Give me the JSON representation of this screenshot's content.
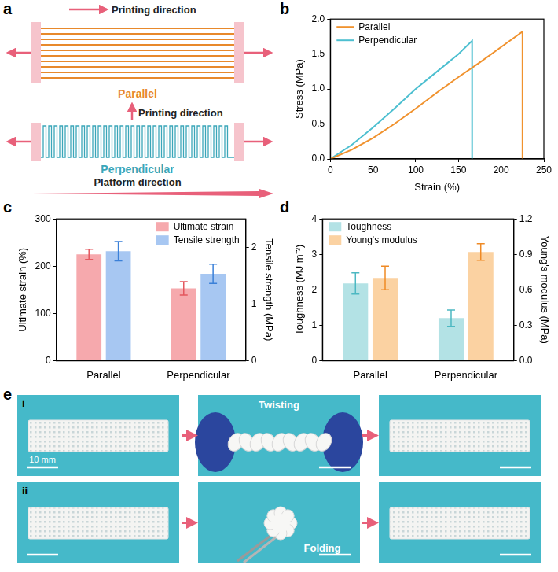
{
  "panel_labels": [
    "a",
    "b",
    "c",
    "d",
    "e"
  ],
  "schematic": {
    "parallel": {
      "label": "Parallel",
      "direction_label": "Printing direction"
    },
    "perpendicular": {
      "label": "Perpendicular",
      "direction_label": "Printing direction"
    },
    "platform_label": "Platform direction"
  },
  "chart_data": [
    {
      "type": "line",
      "x_label": "Strain (%)",
      "y_label": "Stress (MPa)",
      "xlim": [
        0,
        250
      ],
      "xticks": [
        0,
        50,
        100,
        150,
        200,
        250
      ],
      "ylim": [
        0,
        2
      ],
      "yticks": [
        {
          "value": 0,
          "label": "0.0"
        },
        0.5,
        {
          "value": 1,
          "label": "1.0"
        },
        1.5,
        {
          "value": 2,
          "label": "2.0"
        }
      ],
      "grid": false,
      "legend": "top-left",
      "series": [
        {
          "name": "Parallel",
          "color": "#f0922e",
          "x": [
            0,
            25,
            50,
            75,
            100,
            125,
            150,
            175,
            200,
            225,
            225
          ],
          "values": [
            0,
            0.13,
            0.3,
            0.5,
            0.72,
            0.95,
            1.17,
            1.38,
            1.6,
            1.82,
            0
          ]
        },
        {
          "name": "Perpendicular",
          "color": "#4dbfd0",
          "x": [
            0,
            25,
            50,
            75,
            100,
            125,
            150,
            166,
            166
          ],
          "values": [
            0,
            0.2,
            0.45,
            0.72,
            1.0,
            1.25,
            1.5,
            1.69,
            0
          ]
        }
      ]
    },
    {
      "type": "bar",
      "categories": [
        "Parallel",
        "Perpendicular"
      ],
      "y_label": "Ultimate strain (%)",
      "y2_label": "Tensile strength (MPa)",
      "ylim": [
        0,
        300
      ],
      "yticks": [
        0,
        100,
        200,
        300
      ],
      "y2lim": [
        0,
        2.5
      ],
      "y2ticks": [
        0,
        1,
        2
      ],
      "grid": false,
      "legend": "top-right",
      "series": [
        {
          "name": "Ultimate strain",
          "color": "#f6a9ad",
          "values": [
            225,
            153
          ],
          "errors": [
            11,
            14
          ]
        },
        {
          "name": "Tensile strength",
          "color": "#a7c7f2",
          "axis": "y2",
          "values": [
            1.93,
            1.53
          ],
          "errors": [
            0.17,
            0.17
          ]
        }
      ]
    },
    {
      "type": "bar",
      "categories": [
        "Parallel",
        "Perpendicular"
      ],
      "y_label": "Toughness (MJ m⁻³)",
      "y2_label": "Young's modulus (MPa)",
      "ylim": [
        0,
        4
      ],
      "yticks": [
        0,
        1,
        2,
        3,
        4
      ],
      "y2lim": [
        0,
        1.2
      ],
      "y2ticks": [
        {
          "value": 0,
          "label": "0.0"
        },
        0.3,
        0.6,
        0.9,
        1.2
      ],
      "grid": false,
      "legend": "top-left",
      "series": [
        {
          "name": "Toughness",
          "color": "#b3e2e5",
          "values": [
            2.18,
            1.2
          ],
          "errors": [
            0.3,
            0.23
          ]
        },
        {
          "name": "Young's modulus",
          "color": "#fbd2a2",
          "axis": "y2",
          "values": [
            0.7,
            0.92
          ],
          "errors": [
            0.1,
            0.07
          ]
        }
      ]
    }
  ],
  "photos": {
    "rows": [
      {
        "label": "i",
        "action": "Twisting"
      },
      {
        "label": "ii",
        "action": "Folding"
      }
    ],
    "scale_bar": "10 mm"
  }
}
